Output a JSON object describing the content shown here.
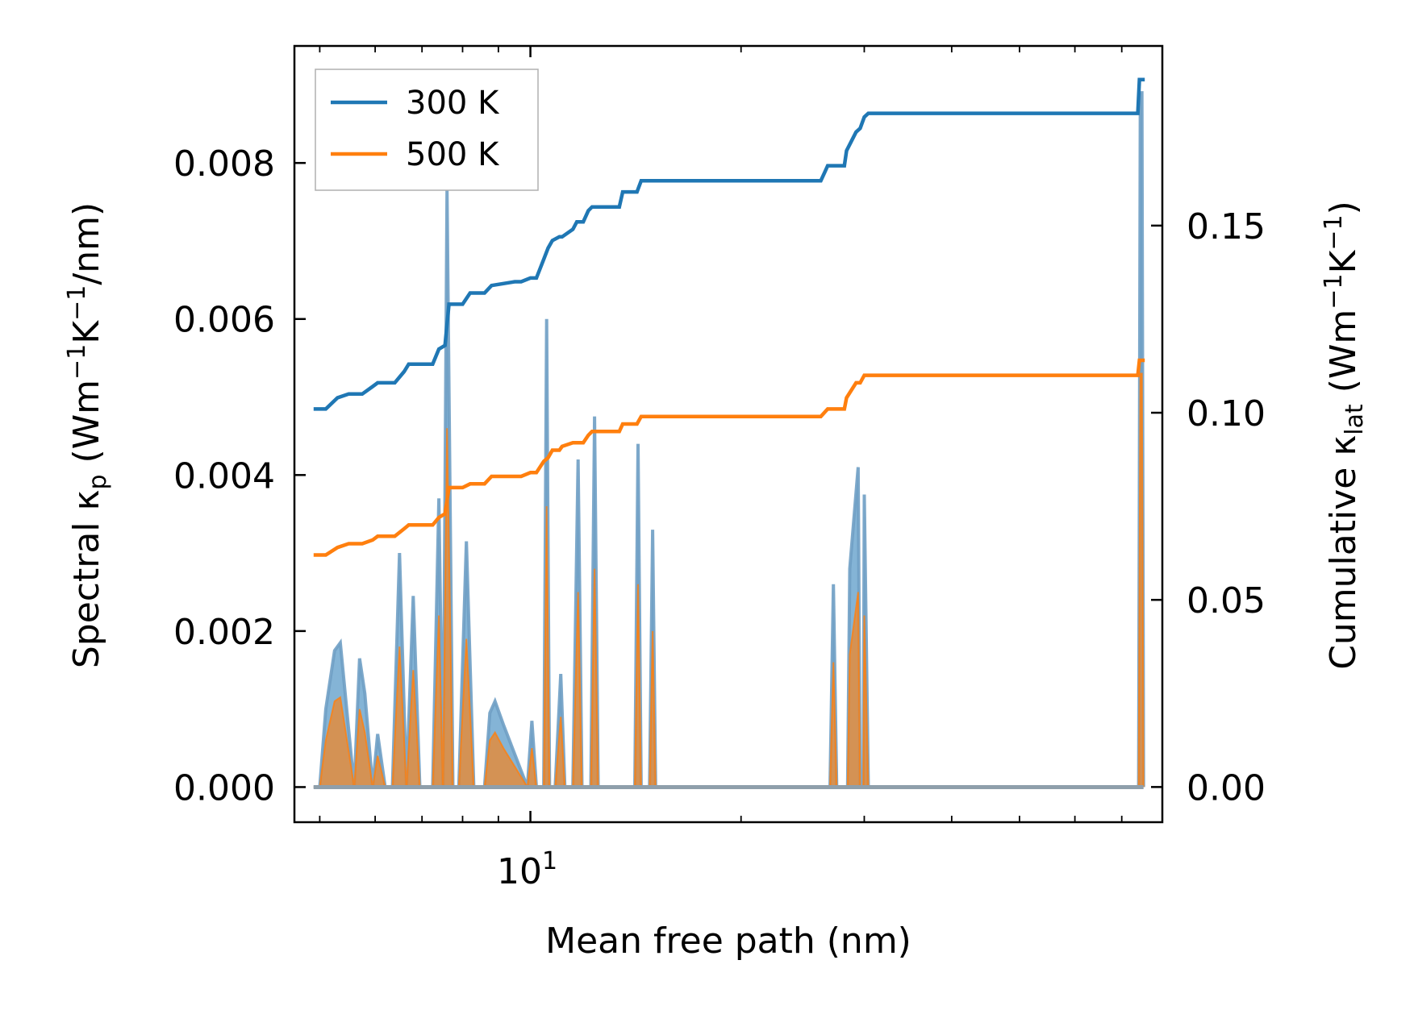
{
  "chart_data": {
    "type": "line",
    "title": "",
    "xlabel": "Mean free path (nm)",
    "x_scale": "log",
    "xlim": [
      4.6,
      80
    ],
    "x_ticks": [
      {
        "value": 10,
        "label": "10",
        "exp": "1"
      }
    ],
    "left_axis": {
      "label": "Spectral κp (Wm⁻¹K⁻¹/nm)",
      "label_parts": {
        "main": "Spectral κ",
        "sub": "p",
        "unit": "(Wm",
        "e1": "−1",
        "k": "K",
        "e2": "−1",
        "tail": "/nm)"
      },
      "ylim": [
        -0.00045,
        0.0095
      ],
      "ticks": [
        {
          "value": 0.0,
          "label": "0.000"
        },
        {
          "value": 0.002,
          "label": "0.002"
        },
        {
          "value": 0.004,
          "label": "0.004"
        },
        {
          "value": 0.006,
          "label": "0.006"
        },
        {
          "value": 0.008,
          "label": "0.008"
        }
      ]
    },
    "right_axis": {
      "label": "Cumulative κlat (Wm⁻¹K⁻¹)",
      "label_parts": {
        "main": "Cumulative κ",
        "sub": "lat",
        "unit": "(Wm",
        "e1": "−1",
        "k": "K",
        "e2": "−1",
        "tail": ")"
      },
      "ylim": [
        -0.0094,
        0.198
      ],
      "ticks": [
        {
          "value": 0.0,
          "label": "0.00"
        },
        {
          "value": 0.05,
          "label": "0.05"
        },
        {
          "value": 0.1,
          "label": "0.10"
        },
        {
          "value": 0.15,
          "label": "0.15"
        }
      ]
    },
    "legend": {
      "position": "top-left",
      "entries": [
        {
          "name": "300 K",
          "color": "#1f77b4"
        },
        {
          "name": "500 K",
          "color": "#ff7f0e"
        }
      ]
    },
    "colors": {
      "s300": "#1f77b4",
      "s500": "#ff7f0e",
      "spectral_line": "#6f9fc4",
      "fill_300": "#1f77b4",
      "fill_500": "#ff7f0e"
    },
    "spectral_300K": {
      "name": "300 K",
      "x": [
        4.9,
        5.0,
        5.1,
        5.25,
        5.35,
        5.6,
        5.7,
        5.8,
        5.95,
        6.05,
        6.2,
        6.35,
        6.5,
        6.65,
        6.8,
        6.95,
        7.25,
        7.4,
        7.5,
        7.6,
        7.75,
        7.9,
        8.1,
        8.3,
        8.6,
        8.75,
        8.9,
        9.15,
        9.9,
        10.05,
        10.2,
        10.45,
        10.55,
        10.65,
        10.85,
        11.05,
        11.2,
        11.5,
        11.7,
        11.85,
        12.2,
        12.35,
        12.5,
        14.1,
        14.25,
        14.4,
        14.8,
        14.95,
        15.1,
        26.8,
        27.1,
        27.4,
        28.4,
        28.6,
        29.4,
        29.6,
        29.9,
        30.0,
        30.4,
        74.0,
        74.4,
        74.8,
        75.2
      ],
      "values": [
        0,
        0,
        0.001,
        0.00175,
        0.00185,
        0,
        0.00165,
        0.0012,
        0,
        0.00068,
        0,
        0,
        0.003,
        0,
        0.00245,
        0,
        0,
        0.0037,
        0,
        0.00765,
        0,
        0,
        0.00315,
        0,
        0,
        0.00095,
        0.0011,
        0.0008,
        0,
        0.00085,
        0,
        0,
        0.006,
        0,
        0,
        0.00145,
        0,
        0,
        0.0042,
        0,
        0,
        0.00475,
        0,
        0,
        0.0044,
        0,
        0,
        0.0033,
        0,
        0,
        0.0026,
        0,
        0,
        0.0028,
        0.0041,
        0,
        0,
        0.00375,
        0,
        0,
        0.0089,
        0.0089,
        0
      ]
    },
    "spectral_500K": {
      "name": "500 K",
      "x": [
        4.9,
        5.0,
        5.1,
        5.25,
        5.35,
        5.6,
        5.7,
        5.8,
        5.95,
        6.05,
        6.2,
        6.35,
        6.5,
        6.65,
        6.8,
        6.95,
        7.25,
        7.4,
        7.5,
        7.6,
        7.75,
        7.9,
        8.1,
        8.3,
        8.6,
        8.75,
        8.9,
        9.15,
        9.9,
        10.05,
        10.2,
        10.45,
        10.55,
        10.65,
        10.85,
        11.05,
        11.2,
        11.5,
        11.7,
        11.85,
        12.2,
        12.35,
        12.5,
        14.1,
        14.25,
        14.4,
        14.8,
        14.95,
        15.1,
        26.8,
        27.1,
        27.4,
        28.4,
        28.6,
        29.4,
        29.6,
        29.9,
        30.0,
        30.4,
        74.0,
        74.4,
        74.8,
        75.2
      ],
      "values": [
        0,
        0,
        0.0006,
        0.0011,
        0.00115,
        0,
        0.001,
        0.0007,
        0,
        0.0004,
        0,
        0,
        0.0018,
        0,
        0.0015,
        0,
        0,
        0.0022,
        0,
        0.0046,
        0,
        0,
        0.0019,
        0,
        0,
        0.0006,
        0.0007,
        0.0005,
        0,
        0.0005,
        0,
        0,
        0.0036,
        0,
        0,
        0.0009,
        0,
        0,
        0.0025,
        0,
        0,
        0.0028,
        0,
        0,
        0.0026,
        0,
        0,
        0.002,
        0,
        0,
        0.0016,
        0,
        0,
        0.0017,
        0.0025,
        0,
        0,
        0.0022,
        0,
        0,
        0.0053,
        0.0053,
        0
      ]
    },
    "cumulative_300K": {
      "name": "300 K",
      "x": [
        4.9,
        5.0,
        5.1,
        5.3,
        5.5,
        5.75,
        5.95,
        6.05,
        6.3,
        6.4,
        6.6,
        6.7,
        7.25,
        7.4,
        7.55,
        7.65,
        8.0,
        8.2,
        8.6,
        8.8,
        9.5,
        9.7,
        10.0,
        10.2,
        10.45,
        10.6,
        10.75,
        11.0,
        11.1,
        11.5,
        11.65,
        11.9,
        12.1,
        12.25,
        12.5,
        13.4,
        13.55,
        14.2,
        14.4,
        26.0,
        26.3,
        26.6,
        28.1,
        28.3,
        29.2,
        29.6,
        30.0,
        30.4,
        73.0,
        73.8,
        74.2,
        75.5
      ],
      "values": [
        0.101,
        0.101,
        0.101,
        0.104,
        0.105,
        0.105,
        0.107,
        0.108,
        0.108,
        0.108,
        0.111,
        0.113,
        0.113,
        0.117,
        0.118,
        0.129,
        0.129,
        0.132,
        0.132,
        0.134,
        0.135,
        0.135,
        0.136,
        0.136,
        0.141,
        0.144,
        0.146,
        0.147,
        0.147,
        0.149,
        0.151,
        0.151,
        0.154,
        0.155,
        0.155,
        0.155,
        0.159,
        0.159,
        0.162,
        0.162,
        0.164,
        0.166,
        0.166,
        0.17,
        0.175,
        0.176,
        0.179,
        0.18,
        0.18,
        0.18,
        0.189,
        0.189
      ]
    },
    "cumulative_500K": {
      "name": "500 K",
      "x": [
        4.9,
        5.0,
        5.1,
        5.3,
        5.5,
        5.75,
        5.95,
        6.05,
        6.3,
        6.4,
        6.6,
        6.7,
        7.25,
        7.4,
        7.55,
        7.65,
        8.0,
        8.2,
        8.6,
        8.8,
        9.5,
        9.7,
        10.0,
        10.2,
        10.45,
        10.6,
        10.75,
        11.0,
        11.1,
        11.5,
        11.65,
        11.9,
        12.1,
        12.25,
        12.5,
        13.4,
        13.55,
        14.2,
        14.4,
        26.0,
        26.3,
        26.6,
        28.1,
        28.3,
        29.2,
        29.6,
        30.0,
        30.4,
        73.0,
        73.8,
        74.2,
        75.5
      ],
      "values": [
        0.062,
        0.062,
        0.062,
        0.064,
        0.065,
        0.065,
        0.066,
        0.067,
        0.067,
        0.067,
        0.069,
        0.07,
        0.07,
        0.072,
        0.073,
        0.08,
        0.08,
        0.081,
        0.081,
        0.083,
        0.083,
        0.083,
        0.084,
        0.084,
        0.087,
        0.088,
        0.09,
        0.09,
        0.091,
        0.092,
        0.092,
        0.092,
        0.094,
        0.095,
        0.095,
        0.095,
        0.097,
        0.097,
        0.099,
        0.099,
        0.1,
        0.101,
        0.101,
        0.104,
        0.108,
        0.108,
        0.11,
        0.11,
        0.11,
        0.11,
        0.114,
        0.114
      ]
    }
  }
}
